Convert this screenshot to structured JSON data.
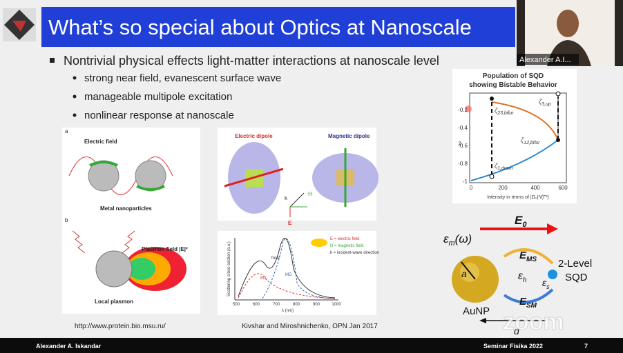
{
  "slide": {
    "title": "What’s so special about Optics at Nanoscale",
    "bullet": "Nontrivial physical effects light-matter interactions at nanoscale level",
    "sub_bullets": [
      "strong near field, evanescent surface wave",
      "manageable multipole excitation",
      "nonlinear response at nanoscale"
    ],
    "figure_left": {
      "panel_a": "a",
      "electric_field": "Electric field",
      "metal_nanoparticles": "Metal nanoparticles",
      "panel_b": "b",
      "plasmon_field": "Plasmon field |E|²",
      "local_plasmon": "Local plasmon",
      "source": "http://www.protein.bio.msu.ru/"
    },
    "figure_center": {
      "electric_dipole": "Electric dipole",
      "magnetic_dipole": "Magnetic dipole",
      "axis_k": "k",
      "axis_h": "H",
      "axis_e": "E",
      "plot_total": "Total",
      "plot_ed": "ED",
      "plot_md": "MD",
      "y_label": "Scattering cross-section (a.u.)",
      "x_label": "λ (nm)",
      "x_ticks": [
        "500",
        "600",
        "700",
        "800",
        "900",
        "1000"
      ],
      "legend": [
        "E = electric field",
        "H = magnetic field",
        "k = incident-wave direction"
      ],
      "source": "Kivshar and Miroshnichenko, OPN Jan 2017"
    },
    "figure_right_plot": {
      "title": [
        "Population of SQD",
        "showing Bistable Behavior"
      ],
      "y_label": "z",
      "y_ticks": [
        "-0.2",
        "-0.4",
        "-0.6",
        "-0.8",
        "-1"
      ],
      "x_ticks": [
        "0",
        "200",
        "400",
        "600"
      ],
      "x_label": "Intensity in terms of |Ω₀|²/(Γ²)",
      "labels": [
        {
          "base": "ζ",
          "sub": "3,up"
        },
        {
          "base": "ζ",
          "sub": "23,bifur"
        },
        {
          "base": "ζ",
          "sub": "12,bifur"
        },
        {
          "base": "ζ",
          "sub": "1,down"
        }
      ]
    },
    "figure_right_diagram": {
      "field": {
        "base": "E",
        "sub": "0"
      },
      "eps_m": {
        "base": "ε",
        "sub": "m",
        "rest": "(ω)"
      },
      "e_ms": {
        "base": "E",
        "sub": "MS"
      },
      "e_sm": {
        "base": "E",
        "sub": "SM"
      },
      "eps_h": {
        "base": "ε",
        "sub": "h"
      },
      "eps_s": {
        "base": "ε",
        "sub": "s"
      },
      "radius": "a",
      "distance": "d",
      "particle": "AuNP",
      "qd": [
        "2-Level",
        "SQD"
      ]
    }
  },
  "footer": {
    "presenter": "Alexander A. Iskandar",
    "event": "Seminar Fisika 2022",
    "page": "7"
  },
  "video": {
    "participant": "Alexander A.I..."
  },
  "watermark": "zoom"
}
